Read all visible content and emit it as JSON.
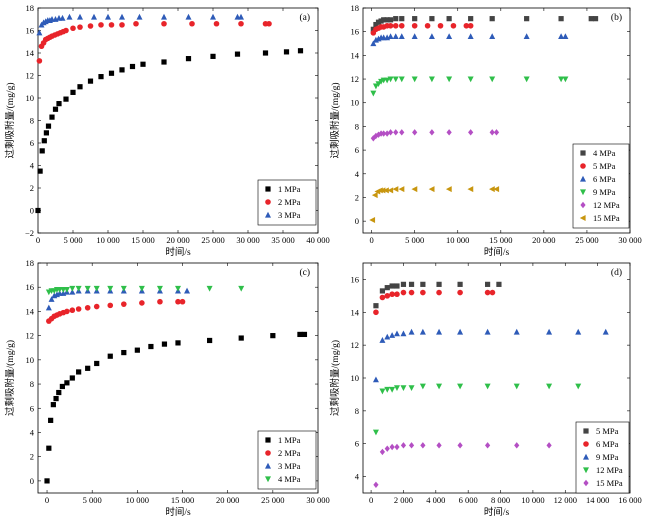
{
  "chart_data": [
    {
      "id": "a",
      "tag": "(a)",
      "type": "scatter",
      "xlabel": "时间/s",
      "ylabel": "过剩吸附量/(mg/g)",
      "xlim": [
        0,
        40000
      ],
      "ylim": [
        -2,
        18
      ],
      "xticks": [
        0,
        5000,
        10000,
        15000,
        20000,
        25000,
        30000,
        35000,
        40000
      ],
      "xtick_labels": [
        "0",
        "5 000",
        "10 000",
        "15 000",
        "20 000",
        "25 000",
        "30 000",
        "35 000",
        "40 000"
      ],
      "yticks": [
        -2,
        0,
        2,
        4,
        6,
        8,
        10,
        12,
        14,
        16,
        18
      ],
      "ytick_labels": [
        "−2",
        "0",
        "2",
        "4",
        "6",
        "8",
        "10",
        "12",
        "14",
        "16",
        "18"
      ],
      "legend_position": "bottom-right",
      "series": [
        {
          "name": "1 MPa",
          "color": "#000000",
          "marker": "square",
          "x": [
            0,
            300,
            600,
            900,
            1200,
            1500,
            2000,
            2500,
            3000,
            4000,
            5000,
            6000,
            7500,
            9000,
            10500,
            12000,
            13500,
            15000,
            18000,
            21500,
            25000,
            28500,
            32500,
            35500,
            37500
          ],
          "y": [
            0,
            3.5,
            5.3,
            6.2,
            6.9,
            7.5,
            8.3,
            9.0,
            9.5,
            9.9,
            10.5,
            11.0,
            11.5,
            11.9,
            12.2,
            12.5,
            12.8,
            13.0,
            13.2,
            13.5,
            13.7,
            13.9,
            14.0,
            14.1,
            14.2
          ]
        },
        {
          "name": "2 MPa",
          "color": "#e8242a",
          "marker": "circle",
          "x": [
            200,
            500,
            800,
            1100,
            1400,
            1700,
            2000,
            2400,
            2800,
            3200,
            3600,
            4000,
            5000,
            6000,
            7500,
            9000,
            10500,
            12000,
            14000,
            18000,
            22000,
            25500,
            29000,
            32500,
            33000
          ],
          "y": [
            13.3,
            14.6,
            14.9,
            15.2,
            15.3,
            15.4,
            15.5,
            15.6,
            15.7,
            15.8,
            15.9,
            16.0,
            16.2,
            16.3,
            16.4,
            16.5,
            16.5,
            16.5,
            16.6,
            16.6,
            16.6,
            16.6,
            16.6,
            16.6,
            16.6
          ]
        },
        {
          "name": "3 MPa",
          "color": "#2e5bb8",
          "marker": "triangle-up",
          "x": [
            200,
            500,
            800,
            1100,
            1400,
            1700,
            2000,
            2500,
            3000,
            3500,
            4500,
            6000,
            8000,
            10000,
            12000,
            14500,
            18000,
            21500,
            25000,
            28500,
            29000
          ],
          "y": [
            15.8,
            16.5,
            16.7,
            16.8,
            16.9,
            16.9,
            17.0,
            17.0,
            17.1,
            17.1,
            17.2,
            17.2,
            17.2,
            17.2,
            17.2,
            17.2,
            17.2,
            17.2,
            17.2,
            17.2,
            17.2
          ]
        }
      ]
    },
    {
      "id": "b",
      "tag": "(b)",
      "type": "scatter",
      "xlabel": "时间/s",
      "ylabel": "过剩吸附量/(mg/g)",
      "xlim": [
        -1000,
        30000
      ],
      "ylim": [
        -1,
        18
      ],
      "xticks": [
        0,
        5000,
        10000,
        15000,
        20000,
        25000,
        30000
      ],
      "xtick_labels": [
        "0",
        "5 000",
        "10 000",
        "15 000",
        "20 000",
        "25 000",
        "30 000"
      ],
      "yticks": [
        0,
        2,
        4,
        6,
        8,
        10,
        12,
        14,
        16,
        18
      ],
      "ytick_labels": [
        "0",
        "2",
        "4",
        "6",
        "8",
        "10",
        "12",
        "14",
        "16",
        "18"
      ],
      "legend_position": "bottom-right",
      "series": [
        {
          "name": "4 MPa",
          "color": "#444444",
          "marker": "square",
          "x": [
            200,
            500,
            800,
            1100,
            1400,
            1800,
            2200,
            2800,
            3500,
            5000,
            7000,
            9000,
            11500,
            14000,
            18000,
            22000,
            25500,
            26000
          ],
          "y": [
            16.2,
            16.6,
            16.8,
            16.9,
            17.0,
            17.0,
            17.0,
            17.1,
            17.1,
            17.1,
            17.1,
            17.1,
            17.1,
            17.1,
            17.1,
            17.1,
            17.1,
            17.1
          ]
        },
        {
          "name": "5 MPa",
          "color": "#e8242a",
          "marker": "circle",
          "x": [
            200,
            500,
            800,
            1100,
            1400,
            1800,
            2200,
            2800,
            3500,
            5000,
            6500,
            8000,
            9500,
            11000,
            11500
          ],
          "y": [
            15.9,
            16.2,
            16.3,
            16.4,
            16.4,
            16.5,
            16.5,
            16.5,
            16.5,
            16.5,
            16.5,
            16.5,
            16.5,
            16.5,
            16.5
          ]
        },
        {
          "name": "6 MPa",
          "color": "#2e5bb8",
          "marker": "triangle-up",
          "x": [
            200,
            500,
            800,
            1100,
            1400,
            1800,
            2200,
            2800,
            3500,
            5000,
            7000,
            9000,
            11500,
            14000,
            18000,
            22000,
            22500
          ],
          "y": [
            15.0,
            15.3,
            15.4,
            15.5,
            15.5,
            15.5,
            15.6,
            15.6,
            15.6,
            15.6,
            15.6,
            15.6,
            15.6,
            15.6,
            15.6,
            15.6,
            15.6
          ]
        },
        {
          "name": "9 MPa",
          "color": "#2fbf4a",
          "marker": "triangle-down",
          "x": [
            200,
            500,
            800,
            1100,
            1400,
            1800,
            2200,
            2800,
            3500,
            5000,
            7000,
            9000,
            11500,
            14000,
            18000,
            22000,
            22500
          ],
          "y": [
            10.8,
            11.4,
            11.6,
            11.8,
            11.9,
            11.9,
            12.0,
            12.0,
            12.0,
            12.0,
            12.0,
            12.0,
            12.0,
            12.0,
            12.0,
            12.0,
            12.0
          ]
        },
        {
          "name": "12 MPa",
          "color": "#b44fc4",
          "marker": "diamond",
          "x": [
            200,
            500,
            800,
            1100,
            1400,
            1800,
            2200,
            2800,
            3500,
            5000,
            7000,
            9000,
            11500,
            14000,
            14500
          ],
          "y": [
            7.0,
            7.2,
            7.3,
            7.4,
            7.4,
            7.4,
            7.5,
            7.5,
            7.5,
            7.5,
            7.5,
            7.5,
            7.5,
            7.5,
            7.5
          ]
        },
        {
          "name": "15 MPa",
          "color": "#c8960f",
          "marker": "triangle-left",
          "x": [
            100,
            400,
            700,
            1000,
            1300,
            1700,
            2200,
            2800,
            3500,
            5000,
            7000,
            9000,
            11500,
            14000,
            14500
          ],
          "y": [
            0.1,
            2.2,
            2.5,
            2.6,
            2.6,
            2.6,
            2.6,
            2.7,
            2.7,
            2.7,
            2.7,
            2.7,
            2.7,
            2.7,
            2.7
          ]
        }
      ]
    },
    {
      "id": "c",
      "tag": "(c)",
      "type": "scatter",
      "xlabel": "时间/s",
      "ylabel": "过剩吸附量/(mg/g)",
      "xlim": [
        -1000,
        30000
      ],
      "ylim": [
        -1,
        18
      ],
      "xticks": [
        0,
        5000,
        10000,
        15000,
        20000,
        25000,
        30000
      ],
      "xtick_labels": [
        "0",
        "5 000",
        "10 000",
        "15 000",
        "20 000",
        "25 000",
        "30 000"
      ],
      "yticks": [
        0,
        2,
        4,
        6,
        8,
        10,
        12,
        14,
        16,
        18
      ],
      "ytick_labels": [
        "0",
        "2",
        "4",
        "6",
        "8",
        "10",
        "12",
        "14",
        "16",
        "18"
      ],
      "legend_position": "bottom-right",
      "series": [
        {
          "name": "1 MPa",
          "color": "#000000",
          "marker": "square",
          "x": [
            0,
            200,
            400,
            700,
            1000,
            1300,
            1700,
            2200,
            2800,
            3500,
            4500,
            5500,
            7000,
            8500,
            10000,
            11500,
            13000,
            14500,
            18000,
            21500,
            25000,
            28000,
            28500
          ],
          "y": [
            0,
            2.7,
            5.0,
            6.3,
            6.8,
            7.3,
            7.8,
            8.1,
            8.5,
            9.0,
            9.3,
            9.7,
            10.3,
            10.6,
            10.8,
            11.1,
            11.3,
            11.4,
            11.6,
            11.8,
            12.0,
            12.1,
            12.1
          ]
        },
        {
          "name": "2 MPa",
          "color": "#e8242a",
          "marker": "circle",
          "x": [
            200,
            500,
            800,
            1100,
            1400,
            1800,
            2200,
            2800,
            3500,
            4500,
            5500,
            7000,
            8500,
            10500,
            12500,
            14500,
            15000
          ],
          "y": [
            13.2,
            13.4,
            13.6,
            13.7,
            13.8,
            13.9,
            14.0,
            14.1,
            14.2,
            14.3,
            14.4,
            14.5,
            14.6,
            14.7,
            14.8,
            14.8,
            14.8
          ]
        },
        {
          "name": "3 MPa",
          "color": "#2e5bb8",
          "marker": "triangle-up",
          "x": [
            200,
            500,
            800,
            1100,
            1400,
            1800,
            2200,
            2800,
            3500,
            4500,
            5500,
            7000,
            8500,
            10500,
            12500,
            14500,
            15500
          ],
          "y": [
            14.3,
            15.0,
            15.3,
            15.4,
            15.5,
            15.5,
            15.6,
            15.6,
            15.7,
            15.7,
            15.7,
            15.7,
            15.7,
            15.7,
            15.7,
            15.7,
            15.7
          ]
        },
        {
          "name": "4 MPa",
          "color": "#2fbf4a",
          "marker": "triangle-down",
          "x": [
            200,
            500,
            800,
            1100,
            1400,
            1800,
            2200,
            2800,
            3500,
            4500,
            5500,
            7000,
            8500,
            10500,
            12500,
            14500,
            18000,
            21500
          ],
          "y": [
            15.6,
            15.7,
            15.7,
            15.8,
            15.8,
            15.8,
            15.8,
            15.9,
            15.9,
            15.9,
            15.9,
            15.9,
            15.9,
            15.9,
            15.9,
            15.9,
            15.9,
            15.9
          ]
        }
      ]
    },
    {
      "id": "d",
      "tag": "(d)",
      "type": "scatter",
      "xlabel": "时间/s",
      "ylabel": "过剩吸附量/(mg/g)",
      "xlim": [
        -500,
        16000
      ],
      "ylim": [
        3,
        17
      ],
      "xticks": [
        0,
        2000,
        4000,
        6000,
        8000,
        10000,
        12000,
        14000,
        16000
      ],
      "xtick_labels": [
        "0",
        "2 000",
        "4 000",
        "6 000",
        "8 000",
        "10 000",
        "12 000",
        "14 000",
        "16 000"
      ],
      "yticks": [
        4,
        6,
        8,
        10,
        12,
        14,
        16
      ],
      "ytick_labels": [
        "4",
        "6",
        "8",
        "10",
        "12",
        "14",
        "16"
      ],
      "legend_position": "bottom-right",
      "series": [
        {
          "name": "5 MPa",
          "color": "#444444",
          "marker": "square",
          "x": [
            300,
            700,
            1000,
            1300,
            1600,
            2000,
            2500,
            3200,
            4200,
            5500,
            7200,
            7900
          ],
          "y": [
            14.4,
            15.3,
            15.5,
            15.6,
            15.6,
            15.7,
            15.7,
            15.7,
            15.7,
            15.7,
            15.7,
            15.7
          ]
        },
        {
          "name": "6 MPa",
          "color": "#e8242a",
          "marker": "circle",
          "x": [
            300,
            700,
            1000,
            1300,
            1600,
            2000,
            2500,
            3200,
            4200,
            5500,
            7200,
            7500
          ],
          "y": [
            14.0,
            14.9,
            15.0,
            15.1,
            15.1,
            15.2,
            15.2,
            15.2,
            15.2,
            15.2,
            15.2,
            15.2
          ]
        },
        {
          "name": "9 MPa",
          "color": "#2e5bb8",
          "marker": "triangle-up",
          "x": [
            300,
            700,
            1000,
            1300,
            1600,
            2000,
            2500,
            3200,
            4200,
            5500,
            7200,
            9000,
            11000,
            12800,
            14500
          ],
          "y": [
            9.9,
            12.3,
            12.5,
            12.6,
            12.7,
            12.7,
            12.8,
            12.8,
            12.8,
            12.8,
            12.8,
            12.8,
            12.8,
            12.8,
            12.8
          ]
        },
        {
          "name": "12 MPa",
          "color": "#2fbf4a",
          "marker": "triangle-down",
          "x": [
            300,
            700,
            1000,
            1300,
            1600,
            2000,
            2500,
            3200,
            4200,
            5500,
            7200,
            9000,
            11000,
            12800
          ],
          "y": [
            6.7,
            9.2,
            9.3,
            9.3,
            9.4,
            9.4,
            9.4,
            9.5,
            9.5,
            9.5,
            9.5,
            9.5,
            9.5,
            9.5
          ]
        },
        {
          "name": "15 MPa",
          "color": "#b44fc4",
          "marker": "diamond",
          "x": [
            300,
            700,
            1000,
            1300,
            1600,
            2000,
            2500,
            3200,
            4200,
            5500,
            7200,
            9000,
            11000
          ],
          "y": [
            3.5,
            5.5,
            5.7,
            5.8,
            5.8,
            5.9,
            5.9,
            5.9,
            5.9,
            5.9,
            5.9,
            5.9,
            5.9
          ]
        }
      ]
    }
  ]
}
